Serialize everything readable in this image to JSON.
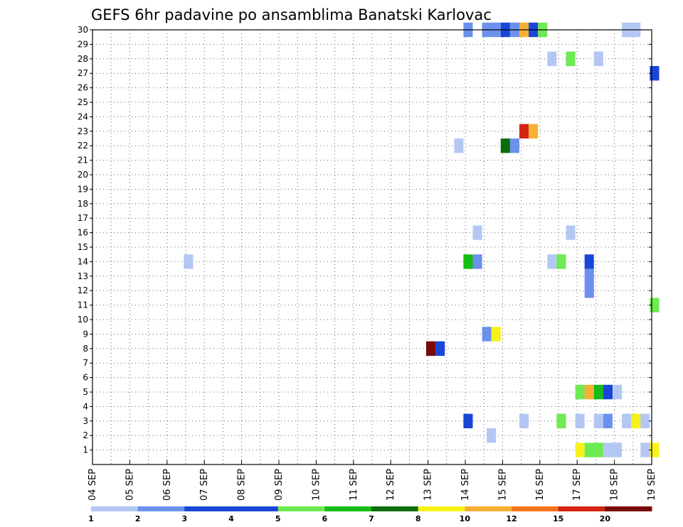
{
  "chart_data": {
    "type": "heatmap",
    "title": "GEFS 6hr padavine po ansamblima Banatski Karlovac",
    "xlabel": "",
    "ylabel": "",
    "x_ticks": [
      "04 SEP",
      "05 SEP",
      "06 SEP",
      "07 SEP",
      "08 SEP",
      "09 SEP",
      "10 SEP",
      "11 SEP",
      "12 SEP",
      "13 SEP",
      "14 SEP",
      "15 SEP",
      "16 SEP",
      "17 SEP",
      "18 SEP",
      "19 SEP"
    ],
    "xlim": [
      0,
      60
    ],
    "ylim": [
      0,
      30
    ],
    "y_ticks": [
      1,
      2,
      3,
      4,
      5,
      6,
      7,
      8,
      9,
      10,
      11,
      12,
      13,
      14,
      15,
      16,
      17,
      18,
      19,
      20,
      21,
      22,
      23,
      24,
      25,
      26,
      27,
      28,
      29,
      30
    ],
    "grid": true,
    "time_step_hours": 6,
    "legend": {
      "placement": "bottom",
      "labels": [
        "1",
        "2",
        "3",
        "4",
        "5",
        "6",
        "7",
        "8",
        "10",
        "12",
        "15",
        "20"
      ],
      "colors": [
        "#b4c7f4",
        "#6b91ec",
        "#1a46d8",
        "#1a46d8",
        "#6eea52",
        "#15bd15",
        "#0b6e0b",
        "#f7f21a",
        "#f7b035",
        "#f47318",
        "#d42613",
        "#7a0808"
      ]
    },
    "cells": [
      {
        "member": 30,
        "step": 39.8,
        "width": 1,
        "color": "#6b91ec"
      },
      {
        "member": 30,
        "step": 41.8,
        "width": 2,
        "color": "#6b91ec"
      },
      {
        "member": 30,
        "step": 43.8,
        "width": 1,
        "color": "#1a46d8"
      },
      {
        "member": 30,
        "step": 44.8,
        "width": 1,
        "color": "#6b91ec"
      },
      {
        "member": 30,
        "step": 45.8,
        "width": 1,
        "color": "#f7b035"
      },
      {
        "member": 30,
        "step": 46.8,
        "width": 1,
        "color": "#1a46d8"
      },
      {
        "member": 30,
        "step": 47.8,
        "width": 1,
        "color": "#6eea52"
      },
      {
        "member": 30,
        "step": 56.8,
        "width": 2,
        "color": "#b4c7f4"
      },
      {
        "member": 28,
        "step": 48.8,
        "width": 1,
        "color": "#b4c7f4"
      },
      {
        "member": 28,
        "step": 50.8,
        "width": 1,
        "color": "#6eea52"
      },
      {
        "member": 28,
        "step": 53.8,
        "width": 1,
        "color": "#b4c7f4"
      },
      {
        "member": 27,
        "step": 59.8,
        "width": 1,
        "color": "#1a46d8"
      },
      {
        "member": 23,
        "step": 45.8,
        "width": 1,
        "color": "#d42613"
      },
      {
        "member": 23,
        "step": 46.8,
        "width": 1,
        "color": "#f7b035"
      },
      {
        "member": 22,
        "step": 38.8,
        "width": 1,
        "color": "#b4c7f4"
      },
      {
        "member": 22,
        "step": 43.8,
        "width": 1,
        "color": "#0b6e0b"
      },
      {
        "member": 22,
        "step": 44.8,
        "width": 1,
        "color": "#6b91ec"
      },
      {
        "member": 16,
        "step": 40.8,
        "width": 1,
        "color": "#b4c7f4"
      },
      {
        "member": 16,
        "step": 50.8,
        "width": 1,
        "color": "#b4c7f4"
      },
      {
        "member": 14,
        "step": 9.8,
        "width": 1,
        "color": "#b4c7f4"
      },
      {
        "member": 14,
        "step": 39.8,
        "width": 1,
        "color": "#15bd15"
      },
      {
        "member": 14,
        "step": 40.8,
        "width": 1,
        "color": "#6b91ec"
      },
      {
        "member": 14,
        "step": 48.8,
        "width": 1,
        "color": "#b4c7f4"
      },
      {
        "member": 14,
        "step": 49.8,
        "width": 1,
        "color": "#6eea52"
      },
      {
        "member": 14,
        "step": 52.8,
        "width": 1,
        "color": "#1a46d8"
      },
      {
        "member": 13,
        "step": 52.8,
        "width": 1,
        "color": "#6b91ec"
      },
      {
        "member": 12,
        "step": 52.8,
        "width": 1,
        "color": "#6b91ec"
      },
      {
        "member": 11,
        "step": 59.8,
        "width": 1,
        "color": "#6eea52"
      },
      {
        "member": 9,
        "step": 41.8,
        "width": 1,
        "color": "#6b91ec"
      },
      {
        "member": 9,
        "step": 42.8,
        "width": 1,
        "color": "#f7f21a"
      },
      {
        "member": 8,
        "step": 35.8,
        "width": 1,
        "color": "#7a0808"
      },
      {
        "member": 8,
        "step": 36.8,
        "width": 1,
        "color": "#1a46d8"
      },
      {
        "member": 5,
        "step": 51.8,
        "width": 1,
        "color": "#6eea52"
      },
      {
        "member": 5,
        "step": 52.8,
        "width": 1,
        "color": "#f7b035"
      },
      {
        "member": 5,
        "step": 53.8,
        "width": 1,
        "color": "#15bd15"
      },
      {
        "member": 5,
        "step": 54.8,
        "width": 1,
        "color": "#1a46d8"
      },
      {
        "member": 5,
        "step": 55.8,
        "width": 1,
        "color": "#b4c7f4"
      },
      {
        "member": 3,
        "step": 39.8,
        "width": 1,
        "color": "#1a46d8"
      },
      {
        "member": 3,
        "step": 45.8,
        "width": 1,
        "color": "#b4c7f4"
      },
      {
        "member": 3,
        "step": 49.8,
        "width": 1,
        "color": "#6eea52"
      },
      {
        "member": 3,
        "step": 51.8,
        "width": 1,
        "color": "#b4c7f4"
      },
      {
        "member": 3,
        "step": 53.8,
        "width": 1,
        "color": "#b4c7f4"
      },
      {
        "member": 3,
        "step": 54.8,
        "width": 1,
        "color": "#6b91ec"
      },
      {
        "member": 3,
        "step": 56.8,
        "width": 1,
        "color": "#b4c7f4"
      },
      {
        "member": 3,
        "step": 57.8,
        "width": 1,
        "color": "#f7f21a"
      },
      {
        "member": 3,
        "step": 58.8,
        "width": 1,
        "color": "#b4c7f4"
      },
      {
        "member": 2,
        "step": 42.3,
        "width": 1,
        "color": "#b4c7f4"
      },
      {
        "member": 1,
        "step": 51.8,
        "width": 1,
        "color": "#f7f21a"
      },
      {
        "member": 1,
        "step": 52.8,
        "width": 2,
        "color": "#6eea52"
      },
      {
        "member": 1,
        "step": 54.8,
        "width": 2,
        "color": "#b4c7f4"
      },
      {
        "member": 1,
        "step": 58.8,
        "width": 1,
        "color": "#b4c7f4"
      },
      {
        "member": 1,
        "step": 59.8,
        "width": 1,
        "color": "#f7f21a"
      }
    ]
  }
}
